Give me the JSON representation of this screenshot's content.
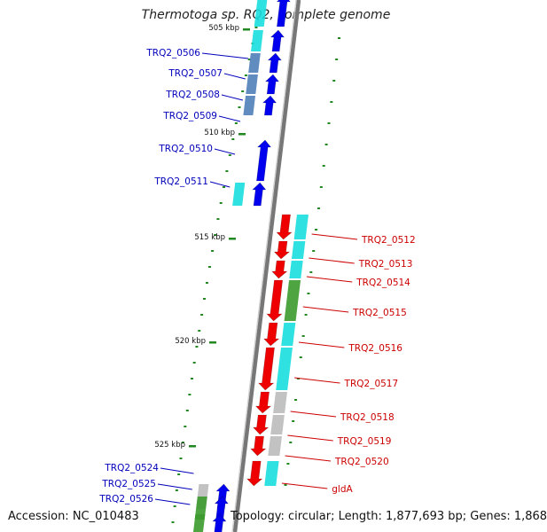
{
  "title": "Thermotoga sp. RQ2, complete genome",
  "accession": "Accession: NC_010483",
  "topology": "Topology: circular; Length: 1,877,693 bp; Genes: 1,868",
  "colors": {
    "forward": "#0000ee",
    "reverse": "#ee0000",
    "forward_label": "#0000bb",
    "reverse_label": "#cc0000",
    "backbone": "#999999",
    "tick": "#228822"
  },
  "scale": {
    "ticks": [
      "505 kbp",
      "510 kbp",
      "515 kbp",
      "520 kbp",
      "525 kbp"
    ]
  },
  "forward_genes": [
    {
      "label": "TRQ2_0506",
      "band": "cyan"
    },
    {
      "label": "TRQ2_0507",
      "band": "steel"
    },
    {
      "label": "TRQ2_0508",
      "band": "steel"
    },
    {
      "label": "TRQ2_0509",
      "band": "steel"
    },
    {
      "label": "TRQ2_0510",
      "band": "none"
    },
    {
      "label": "TRQ2_0511",
      "band": "cyan"
    },
    {
      "label": "TRQ2_0524",
      "band": "gray"
    },
    {
      "label": "TRQ2_0525",
      "band": "green"
    },
    {
      "label": "TRQ2_0526",
      "band": "green"
    }
  ],
  "reverse_genes": [
    {
      "label": "TRQ2_0512",
      "band": "cyan"
    },
    {
      "label": "TRQ2_0513",
      "band": "cyan"
    },
    {
      "label": "TRQ2_0514",
      "band": "cyan"
    },
    {
      "label": "TRQ2_0515",
      "band": "green"
    },
    {
      "label": "TRQ2_0516",
      "band": "cyan"
    },
    {
      "label": "TRQ2_0517",
      "band": "cyan"
    },
    {
      "label": "TRQ2_0518",
      "band": "gray"
    },
    {
      "label": "TRQ2_0519",
      "band": "gray"
    },
    {
      "label": "TRQ2_0520",
      "band": "gray"
    },
    {
      "label": "gldA",
      "band": "cyan"
    }
  ]
}
